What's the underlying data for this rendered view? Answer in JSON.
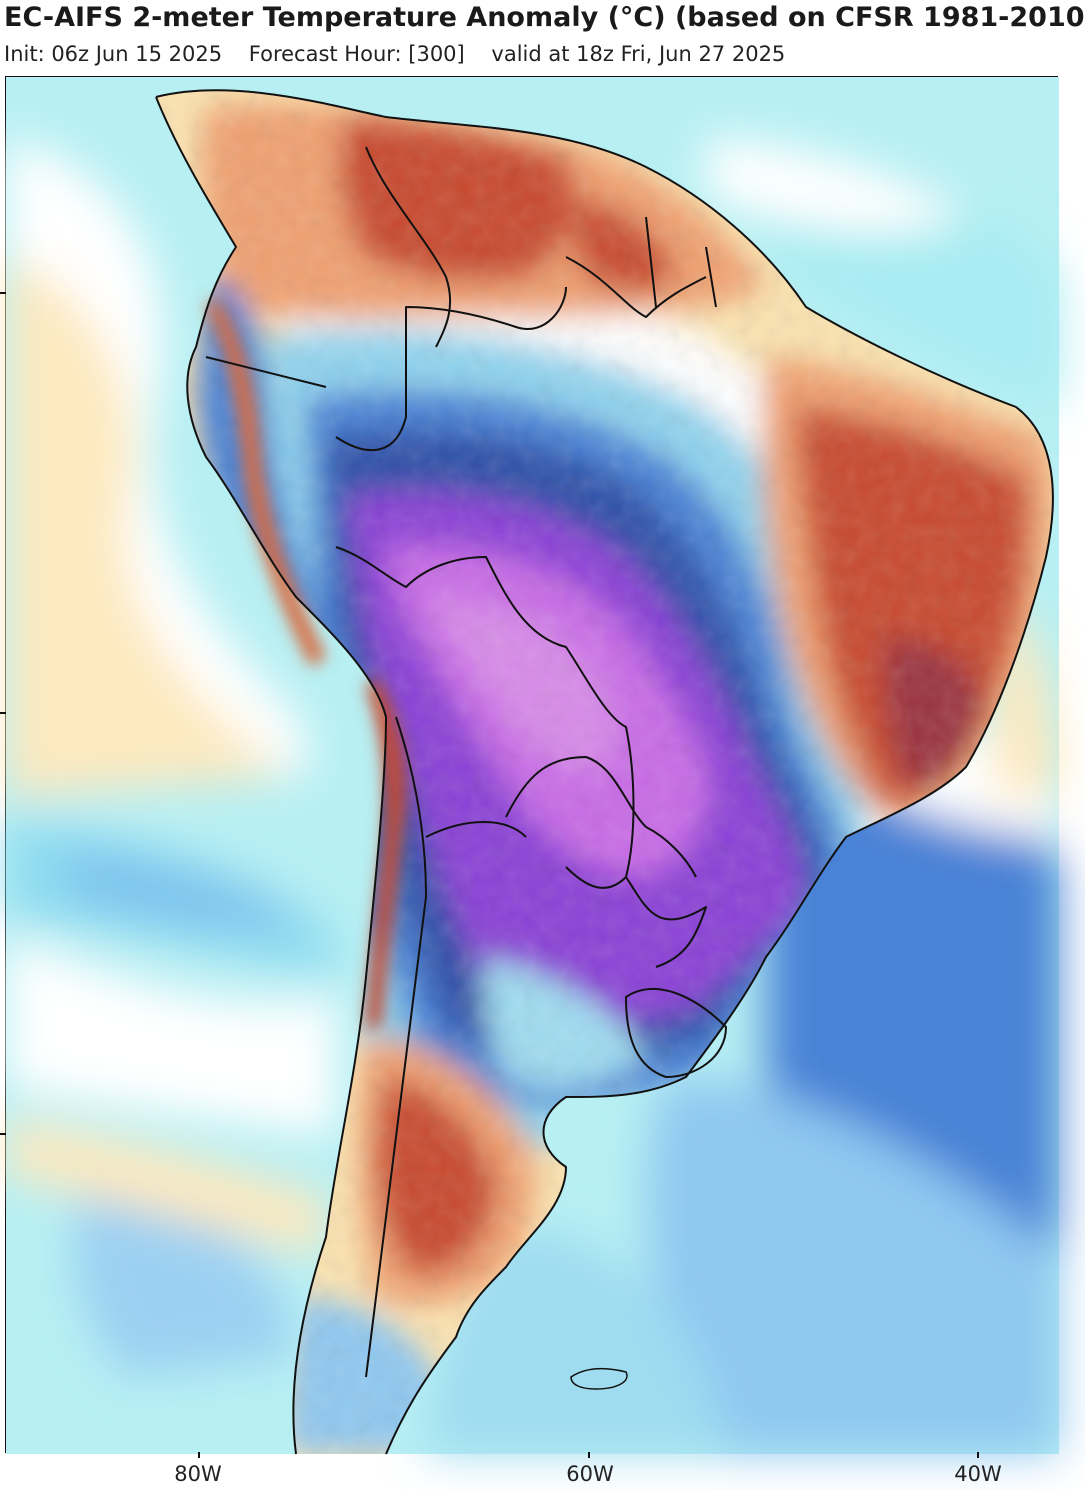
{
  "header": {
    "title": "EC-AIFS 2-meter Temperature Anomaly (°C) (based on CFSR 1981-2010",
    "init": "Init: 06z Jun 15 2025",
    "forecast_hour": "Forecast Hour: [300]",
    "valid": "valid at 18z Fri, Jun 27 2025"
  },
  "axis": {
    "x_ticks": [
      "80W",
      "60W",
      "40W"
    ]
  },
  "colors": {
    "ocean_cool": "#b7eff3",
    "near_zero": "#ffffff",
    "warm_light": "#fbe3b0",
    "warm": "#f0a070",
    "hot": "#c84a2e",
    "very_hot": "#9a3040",
    "cool": "#8fd3ee",
    "cold": "#4a82d6",
    "very_cold": "#2f4fa8",
    "extreme_cold": "#8a3fd6",
    "extreme_cold_core": "#c86ae6",
    "borders": "#111111"
  }
}
